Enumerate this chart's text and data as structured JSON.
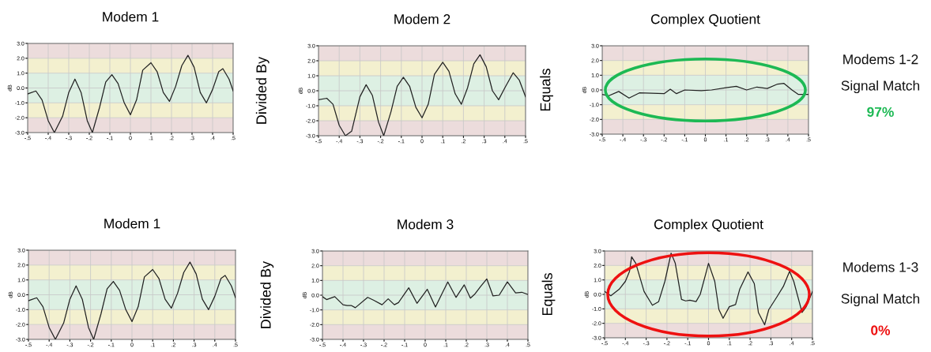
{
  "chart_data": [
    {
      "type": "line",
      "title": "Modem 1",
      "ylabel": "dB",
      "xlim": [
        -0.5,
        0.5
      ],
      "ylim": [
        -3,
        3
      ],
      "grid": true,
      "xticks": [
        {
          "value": -0.5,
          "label": "-.5"
        },
        {
          "value": -0.4,
          "label": "-.4"
        },
        {
          "value": -0.3,
          "label": "-.3"
        },
        {
          "value": -0.2,
          "label": "-.2"
        },
        {
          "value": -0.1,
          "label": "-.1"
        },
        {
          "value": 0,
          "label": "0"
        },
        {
          "value": 0.1,
          "label": ".1"
        },
        {
          "value": 0.2,
          "label": ".2"
        },
        {
          "value": 0.3,
          "label": ".3"
        },
        {
          "value": 0.4,
          "label": ".4"
        },
        {
          "value": 0.5,
          "label": ".5"
        }
      ],
      "yticks": [
        {
          "value": 3,
          "label": "3.0"
        },
        {
          "value": 2,
          "label": "2.0"
        },
        {
          "value": 1,
          "label": "1.0"
        },
        {
          "value": 0,
          "label": "0.0"
        },
        {
          "value": -1,
          "label": "-1.0"
        },
        {
          "value": -2,
          "label": "-2.0"
        },
        {
          "value": -3,
          "label": "-3.0"
        }
      ],
      "bands": [
        {
          "axis": "y",
          "from": 2,
          "to": 3,
          "color": "#ecdcdc"
        },
        {
          "axis": "y",
          "from": 1,
          "to": 2,
          "color": "#f3f0cf"
        },
        {
          "axis": "y",
          "from": -1,
          "to": 1,
          "color": "#ddf0e3"
        },
        {
          "axis": "y",
          "from": -2,
          "to": -1,
          "color": "#f3f0cf"
        },
        {
          "axis": "y",
          "from": -3,
          "to": -2,
          "color": "#ecdcdc"
        }
      ],
      "series": [
        {
          "color": "#222222",
          "x": [
            -0.5,
            -0.46,
            -0.43,
            -0.4,
            -0.37,
            -0.33,
            -0.3,
            -0.27,
            -0.24,
            -0.21,
            -0.185,
            -0.15,
            -0.12,
            -0.09,
            -0.06,
            -0.03,
            0.0,
            0.03,
            0.06,
            0.1,
            0.13,
            0.16,
            0.19,
            0.22,
            0.25,
            0.28,
            0.31,
            0.34,
            0.37,
            0.4,
            0.43,
            0.45,
            0.48,
            0.5
          ],
          "values": [
            -0.4,
            -0.2,
            -0.8,
            -2.2,
            -3.0,
            -1.9,
            -0.3,
            0.6,
            -0.3,
            -2.2,
            -3.0,
            -1.3,
            0.4,
            0.9,
            0.3,
            -1.0,
            -1.8,
            -0.8,
            1.2,
            1.7,
            1.1,
            -0.3,
            -0.9,
            0.1,
            1.5,
            2.2,
            1.4,
            -0.3,
            -1.0,
            -0.1,
            1.1,
            1.3,
            0.6,
            -0.2
          ]
        }
      ]
    },
    {
      "type": "line",
      "title": "Modem 2",
      "ylabel": "dB",
      "xlim": [
        -0.5,
        0.5
      ],
      "ylim": [
        -3,
        3
      ],
      "grid": true,
      "annotations": [
        "Divided By"
      ],
      "xticks": [
        {
          "value": -0.5,
          "label": "-.5"
        },
        {
          "value": -0.4,
          "label": "-.4"
        },
        {
          "value": -0.3,
          "label": "-.3"
        },
        {
          "value": -0.2,
          "label": "-.2"
        },
        {
          "value": -0.1,
          "label": "-.1"
        },
        {
          "value": 0,
          "label": "0"
        },
        {
          "value": 0.1,
          "label": ".1"
        },
        {
          "value": 0.2,
          "label": ".2"
        },
        {
          "value": 0.3,
          "label": ".3"
        },
        {
          "value": 0.4,
          "label": ".4"
        },
        {
          "value": 0.5,
          "label": ".5"
        }
      ],
      "yticks": [
        {
          "value": 3,
          "label": "3.0"
        },
        {
          "value": 2,
          "label": "2.0"
        },
        {
          "value": 1,
          "label": "1.0"
        },
        {
          "value": 0,
          "label": "0.0"
        },
        {
          "value": -1,
          "label": "-1.0"
        },
        {
          "value": -2,
          "label": "-2.0"
        },
        {
          "value": -3,
          "label": "-3.0"
        }
      ],
      "bands": [
        {
          "axis": "y",
          "from": 2,
          "to": 3,
          "color": "#ecdcdc"
        },
        {
          "axis": "y",
          "from": 1,
          "to": 2,
          "color": "#f3f0cf"
        },
        {
          "axis": "y",
          "from": -1,
          "to": 1,
          "color": "#ddf0e3"
        },
        {
          "axis": "y",
          "from": -2,
          "to": -1,
          "color": "#f3f0cf"
        },
        {
          "axis": "y",
          "from": -3,
          "to": -2,
          "color": "#ecdcdc"
        }
      ],
      "series": [
        {
          "color": "#222222",
          "x": [
            -0.5,
            -0.46,
            -0.43,
            -0.4,
            -0.37,
            -0.34,
            -0.3,
            -0.27,
            -0.24,
            -0.21,
            -0.185,
            -0.15,
            -0.12,
            -0.09,
            -0.06,
            -0.03,
            0.0,
            0.03,
            0.06,
            0.1,
            0.13,
            0.16,
            0.19,
            0.22,
            0.25,
            0.28,
            0.31,
            0.34,
            0.37,
            0.4,
            0.44,
            0.47,
            0.5
          ],
          "values": [
            -0.6,
            -0.5,
            -0.9,
            -2.3,
            -3.0,
            -2.7,
            -0.4,
            0.4,
            -0.3,
            -2.1,
            -3.0,
            -1.4,
            0.3,
            0.9,
            0.3,
            -1.1,
            -1.8,
            -0.9,
            1.1,
            1.9,
            1.3,
            -0.2,
            -0.9,
            0.2,
            1.8,
            2.4,
            1.6,
            0.0,
            -0.6,
            0.2,
            1.2,
            0.7,
            -0.4
          ]
        }
      ]
    },
    {
      "type": "line",
      "title": "Complex Quotient",
      "ylabel": "dB",
      "xlim": [
        -0.5,
        0.5
      ],
      "ylim": [
        -3,
        3
      ],
      "grid": true,
      "annotations": [
        "Equals"
      ],
      "xticks": [
        {
          "value": -0.5,
          "label": "-.5"
        },
        {
          "value": -0.4,
          "label": "-.4"
        },
        {
          "value": -0.3,
          "label": "-.3"
        },
        {
          "value": -0.2,
          "label": "-.2"
        },
        {
          "value": -0.1,
          "label": "-.1"
        },
        {
          "value": 0,
          "label": "0"
        },
        {
          "value": 0.1,
          "label": ".1"
        },
        {
          "value": 0.2,
          "label": ".2"
        },
        {
          "value": 0.3,
          "label": ".3"
        },
        {
          "value": 0.4,
          "label": ".4"
        },
        {
          "value": 0.5,
          "label": ".5"
        }
      ],
      "yticks": [
        {
          "value": 3,
          "label": "3.0"
        },
        {
          "value": 2,
          "label": "2.0"
        },
        {
          "value": 1,
          "label": "1.0"
        },
        {
          "value": 0,
          "label": "0.0"
        },
        {
          "value": -1,
          "label": "-1.0"
        },
        {
          "value": -2,
          "label": "-2.0"
        },
        {
          "value": -3,
          "label": "-3.0"
        }
      ],
      "bands": [
        {
          "axis": "y",
          "from": 2,
          "to": 3,
          "color": "#ecdcdc"
        },
        {
          "axis": "y",
          "from": 1,
          "to": 2,
          "color": "#f3f0cf"
        },
        {
          "axis": "y",
          "from": -1,
          "to": 1,
          "color": "#ddf0e3"
        },
        {
          "axis": "y",
          "from": -2,
          "to": -1,
          "color": "#f3f0cf"
        },
        {
          "axis": "y",
          "from": -3,
          "to": -2,
          "color": "#ecdcdc"
        }
      ],
      "series": [
        {
          "color": "#222222",
          "x": [
            -0.5,
            -0.47,
            -0.42,
            -0.37,
            -0.32,
            -0.2,
            -0.17,
            -0.14,
            -0.1,
            -0.02,
            0.03,
            0.1,
            0.15,
            0.2,
            0.25,
            0.3,
            0.35,
            0.38,
            0.42,
            0.45,
            0.5
          ],
          "values": [
            -0.3,
            -0.4,
            -0.1,
            -0.55,
            -0.2,
            -0.25,
            0.05,
            -0.25,
            0.0,
            -0.05,
            0.0,
            0.15,
            0.25,
            0.0,
            0.2,
            0.1,
            0.4,
            0.45,
            0.0,
            -0.3,
            -0.3
          ]
        }
      ]
    },
    {
      "type": "other",
      "annotations": [
        "Modems 1-2",
        "Signal Match",
        "97%"
      ],
      "colors": [
        "#111111",
        "#111111",
        "#1db954"
      ]
    },
    {
      "type": "line",
      "title": "Modem 1",
      "ylabel": "dB",
      "xlim": [
        -0.5,
        0.5
      ],
      "ylim": [
        -3,
        3
      ],
      "grid": true,
      "xticks": [
        {
          "value": -0.5,
          "label": "-.5"
        },
        {
          "value": -0.4,
          "label": "-.4"
        },
        {
          "value": -0.3,
          "label": "-.3"
        },
        {
          "value": -0.2,
          "label": "-.2"
        },
        {
          "value": -0.1,
          "label": "-.1"
        },
        {
          "value": 0,
          "label": "0"
        },
        {
          "value": 0.1,
          "label": ".1"
        },
        {
          "value": 0.2,
          "label": ".2"
        },
        {
          "value": 0.3,
          "label": ".3"
        },
        {
          "value": 0.4,
          "label": ".4"
        },
        {
          "value": 0.5,
          "label": ".5"
        }
      ],
      "yticks": [
        {
          "value": 3,
          "label": "3.0"
        },
        {
          "value": 2,
          "label": "2.0"
        },
        {
          "value": 1,
          "label": "1.0"
        },
        {
          "value": 0,
          "label": "0.0"
        },
        {
          "value": -1,
          "label": "-1.0"
        },
        {
          "value": -2,
          "label": "-2.0"
        },
        {
          "value": -3,
          "label": "-3.0"
        }
      ],
      "bands": [
        {
          "axis": "y",
          "from": 2,
          "to": 3,
          "color": "#ecdcdc"
        },
        {
          "axis": "y",
          "from": 1,
          "to": 2,
          "color": "#f3f0cf"
        },
        {
          "axis": "y",
          "from": -1,
          "to": 1,
          "color": "#ddf0e3"
        },
        {
          "axis": "y",
          "from": -2,
          "to": -1,
          "color": "#f3f0cf"
        },
        {
          "axis": "y",
          "from": -3,
          "to": -2,
          "color": "#ecdcdc"
        }
      ],
      "series": [
        {
          "color": "#222222",
          "x": [
            -0.5,
            -0.46,
            -0.43,
            -0.4,
            -0.37,
            -0.33,
            -0.3,
            -0.27,
            -0.24,
            -0.21,
            -0.185,
            -0.15,
            -0.12,
            -0.09,
            -0.06,
            -0.03,
            0.0,
            0.03,
            0.06,
            0.1,
            0.13,
            0.16,
            0.19,
            0.22,
            0.25,
            0.28,
            0.31,
            0.34,
            0.37,
            0.4,
            0.43,
            0.45,
            0.48,
            0.5
          ],
          "values": [
            -0.4,
            -0.2,
            -0.8,
            -2.2,
            -3.0,
            -1.9,
            -0.3,
            0.6,
            -0.3,
            -2.2,
            -3.0,
            -1.3,
            0.4,
            0.9,
            0.3,
            -1.0,
            -1.8,
            -0.8,
            1.2,
            1.7,
            1.1,
            -0.3,
            -0.9,
            0.1,
            1.5,
            2.2,
            1.4,
            -0.3,
            -1.0,
            -0.1,
            1.1,
            1.3,
            0.6,
            -0.2
          ]
        }
      ]
    },
    {
      "type": "line",
      "title": "Modem 3",
      "ylabel": "dB",
      "xlim": [
        -0.5,
        0.5
      ],
      "ylim": [
        -3,
        3
      ],
      "grid": true,
      "annotations": [
        "Divided By"
      ],
      "xticks": [
        {
          "value": -0.5,
          "label": "-.5"
        },
        {
          "value": -0.4,
          "label": "-.4"
        },
        {
          "value": -0.3,
          "label": "-.3"
        },
        {
          "value": -0.2,
          "label": "-.2"
        },
        {
          "value": -0.1,
          "label": "-.1"
        },
        {
          "value": 0,
          "label": "0"
        },
        {
          "value": 0.1,
          "label": ".1"
        },
        {
          "value": 0.2,
          "label": ".2"
        },
        {
          "value": 0.3,
          "label": ".3"
        },
        {
          "value": 0.4,
          "label": ".4"
        },
        {
          "value": 0.5,
          "label": ".5"
        }
      ],
      "yticks": [
        {
          "value": 3,
          "label": "3.0"
        },
        {
          "value": 2,
          "label": "2.0"
        },
        {
          "value": 1,
          "label": "1.0"
        },
        {
          "value": 0,
          "label": "0.0"
        },
        {
          "value": -1,
          "label": "-1.0"
        },
        {
          "value": -2,
          "label": "-2.0"
        },
        {
          "value": -3,
          "label": "-3.0"
        }
      ],
      "bands": [
        {
          "axis": "y",
          "from": 2,
          "to": 3,
          "color": "#ecdcdc"
        },
        {
          "axis": "y",
          "from": 1,
          "to": 2,
          "color": "#f3f0cf"
        },
        {
          "axis": "y",
          "from": -1,
          "to": 1,
          "color": "#ddf0e3"
        },
        {
          "axis": "y",
          "from": -2,
          "to": -1,
          "color": "#f3f0cf"
        },
        {
          "axis": "y",
          "from": -3,
          "to": -2,
          "color": "#ecdcdc"
        }
      ],
      "series": [
        {
          "color": "#222222",
          "x": [
            -0.5,
            -0.48,
            -0.44,
            -0.4,
            -0.38,
            -0.36,
            -0.34,
            -0.28,
            -0.25,
            -0.21,
            -0.18,
            -0.15,
            -0.13,
            -0.08,
            -0.04,
            0.01,
            0.05,
            0.08,
            0.11,
            0.15,
            0.19,
            0.22,
            0.24,
            0.27,
            0.3,
            0.33,
            0.36,
            0.4,
            0.44,
            0.47,
            0.5
          ],
          "values": [
            -0.1,
            -0.3,
            -0.1,
            -0.65,
            -0.7,
            -0.7,
            -0.85,
            -0.15,
            -0.35,
            -0.65,
            -0.25,
            -0.65,
            -0.5,
            0.5,
            -0.55,
            0.4,
            -0.8,
            0.05,
            0.9,
            -0.15,
            0.7,
            -0.2,
            0.05,
            0.6,
            1.1,
            -0.05,
            0.0,
            0.9,
            0.15,
            0.2,
            0.05
          ]
        }
      ]
    },
    {
      "type": "line",
      "title": "Complex Quotient",
      "ylabel": "dB",
      "xlim": [
        -0.5,
        0.5
      ],
      "ylim": [
        -3,
        3
      ],
      "grid": true,
      "annotations": [
        "Equals"
      ],
      "xticks": [
        {
          "value": -0.5,
          "label": "-.5"
        },
        {
          "value": -0.4,
          "label": "-.4"
        },
        {
          "value": -0.3,
          "label": "-.3"
        },
        {
          "value": -0.2,
          "label": "-.2"
        },
        {
          "value": -0.1,
          "label": "-.1"
        },
        {
          "value": 0,
          "label": "0"
        },
        {
          "value": 0.1,
          "label": ".1"
        },
        {
          "value": 0.2,
          "label": ".2"
        },
        {
          "value": 0.3,
          "label": ".3"
        },
        {
          "value": 0.4,
          "label": ".4"
        },
        {
          "value": 0.5,
          "label": ".5"
        }
      ],
      "yticks": [
        {
          "value": 3,
          "label": "3.0"
        },
        {
          "value": 2,
          "label": "2.0"
        },
        {
          "value": 1,
          "label": "1.0"
        },
        {
          "value": 0,
          "label": "0.0"
        },
        {
          "value": -1,
          "label": "-1.0"
        },
        {
          "value": -2,
          "label": "-2.0"
        },
        {
          "value": -3,
          "label": "-3.0"
        }
      ],
      "bands": [
        {
          "axis": "y",
          "from": 2,
          "to": 3,
          "color": "#ecdcdc"
        },
        {
          "axis": "y",
          "from": 1,
          "to": 2,
          "color": "#f3f0cf"
        },
        {
          "axis": "y",
          "from": -1,
          "to": 1,
          "color": "#ddf0e3"
        },
        {
          "axis": "y",
          "from": -2,
          "to": -1,
          "color": "#f3f0cf"
        },
        {
          "axis": "y",
          "from": -3,
          "to": -2,
          "color": "#ecdcdc"
        }
      ],
      "series": [
        {
          "color": "#222222",
          "x": [
            -0.5,
            -0.47,
            -0.43,
            -0.4,
            -0.38,
            -0.37,
            -0.35,
            -0.31,
            -0.27,
            -0.24,
            -0.21,
            -0.18,
            -0.16,
            -0.13,
            -0.11,
            -0.09,
            -0.06,
            -0.04,
            -0.01,
            0.0,
            0.03,
            0.05,
            0.07,
            0.1,
            0.13,
            0.15,
            0.19,
            0.22,
            0.24,
            0.27,
            0.29,
            0.33,
            0.36,
            0.39,
            0.41,
            0.45,
            0.47,
            0.5
          ],
          "values": [
            0.2,
            -0.1,
            0.35,
            0.9,
            1.6,
            2.6,
            2.15,
            0.2,
            -0.75,
            -0.5,
            0.9,
            2.85,
            2.15,
            -0.35,
            -0.45,
            -0.4,
            -0.5,
            0.0,
            1.6,
            2.15,
            0.9,
            -1.05,
            -1.65,
            -0.85,
            -0.7,
            0.35,
            1.55,
            0.75,
            -1.25,
            -2.1,
            -1.05,
            -0.15,
            0.55,
            1.6,
            0.9,
            -1.25,
            -0.85,
            0.2
          ]
        }
      ]
    },
    {
      "type": "other",
      "annotations": [
        "Modems 1-3",
        "Signal Match",
        "0%"
      ],
      "colors": [
        "#111111",
        "#111111",
        "#ee1111"
      ]
    }
  ]
}
